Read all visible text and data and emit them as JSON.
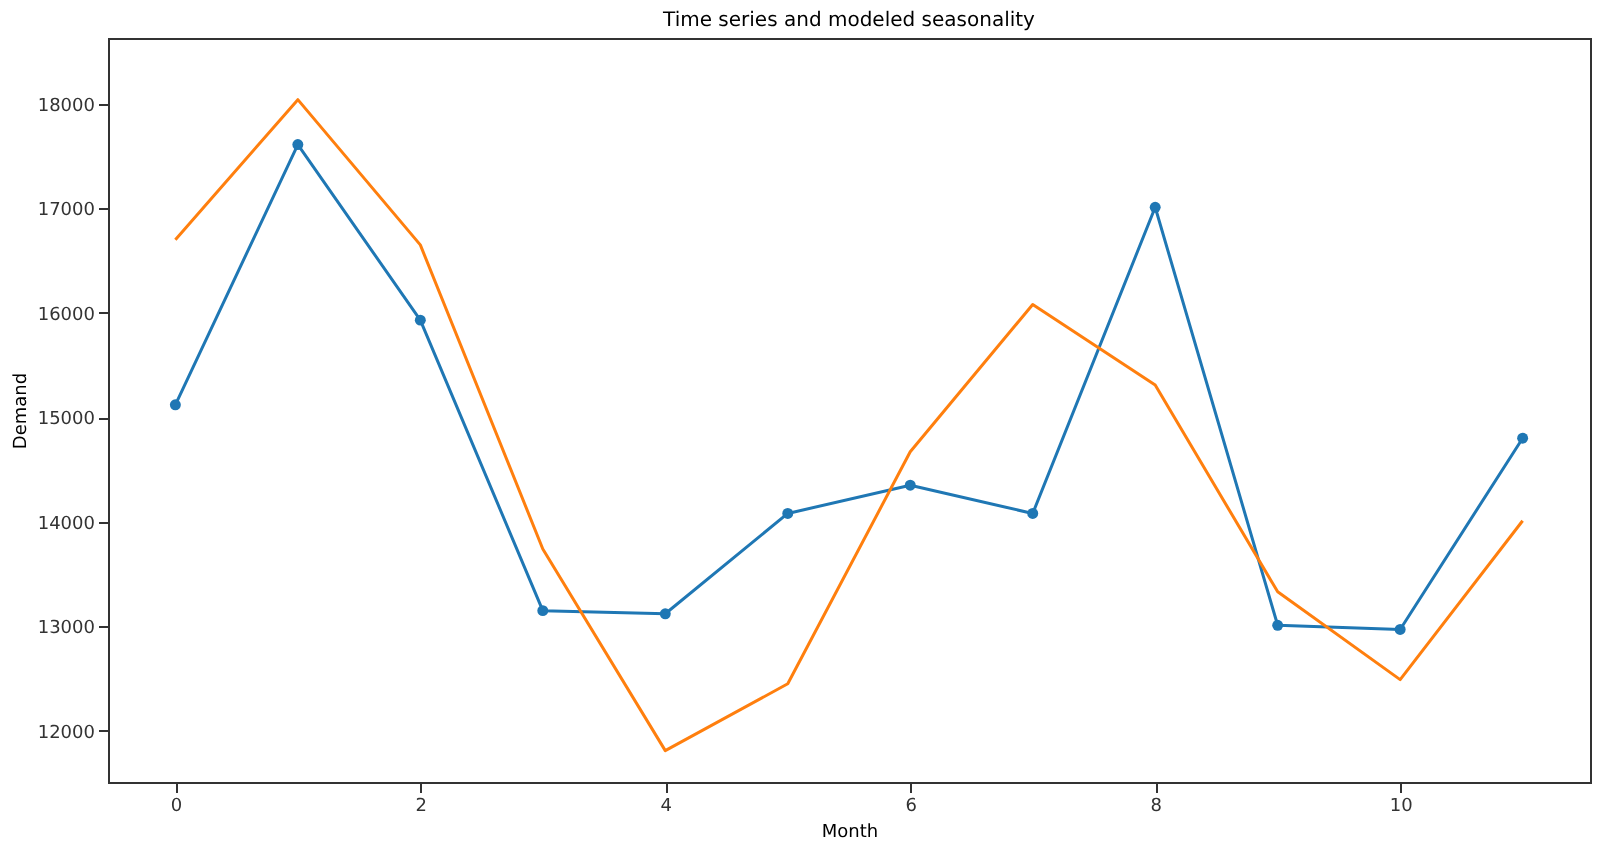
{
  "chart_data": {
    "type": "line",
    "title": "Time series and modeled seasonality",
    "xlabel": "Month",
    "ylabel": "Demand",
    "x": [
      0,
      1,
      2,
      3,
      4,
      5,
      6,
      7,
      8,
      9,
      10,
      11
    ],
    "series": [
      {
        "color": "#1f77b4",
        "marker": "circle",
        "values": [
          15120,
          17610,
          15930,
          13150,
          13120,
          14080,
          14350,
          14080,
          17010,
          13010,
          12970,
          14800
        ]
      },
      {
        "color": "#ff7f0e",
        "marker": "none",
        "values": [
          16700,
          18040,
          16650,
          13740,
          11810,
          12450,
          14670,
          16080,
          15310,
          13330,
          12490,
          14010
        ]
      }
    ],
    "xlim": [
      -0.55,
      11.55
    ],
    "xticks": [
      0,
      2,
      4,
      6,
      8,
      10
    ],
    "ylim": [
      11510,
      18630
    ],
    "yticks": [
      12000,
      13000,
      14000,
      15000,
      16000,
      17000,
      18000
    ],
    "grid": false,
    "line_style": "solid"
  }
}
